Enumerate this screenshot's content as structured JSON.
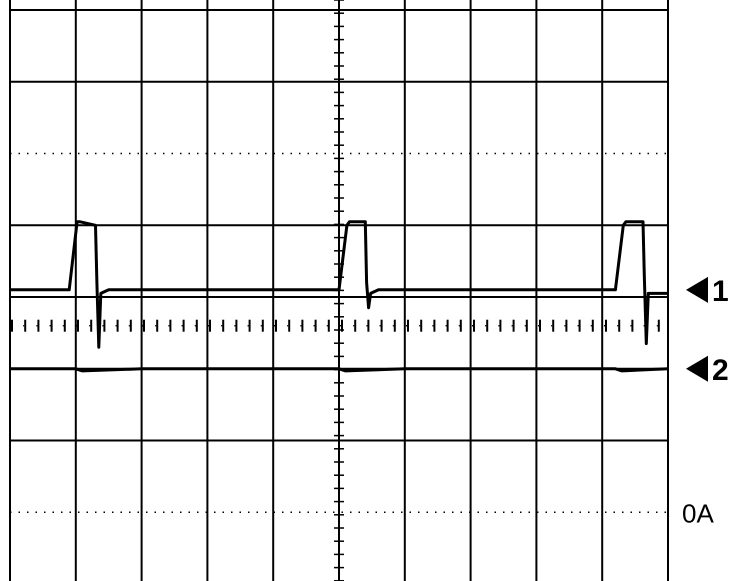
{
  "chart_data": {
    "type": "line",
    "title": "",
    "xlabel": "",
    "ylabel": "",
    "grid": true,
    "grid_divisions": {
      "x": 10,
      "y": 8
    },
    "xlim": [
      0,
      10
    ],
    "ylim": [
      0,
      8
    ],
    "x_unit": "div",
    "y_unit": "div",
    "series": [
      {
        "marker": "1",
        "color": "#000000",
        "points": [
          [
            0,
            4.1
          ],
          [
            0.9,
            4.1
          ],
          [
            1.02,
            5.05
          ],
          [
            1.06,
            5.05
          ],
          [
            1.3,
            5.0
          ],
          [
            1.32,
            4.2
          ],
          [
            1.35,
            3.3
          ],
          [
            1.38,
            4.05
          ],
          [
            1.5,
            4.1
          ],
          [
            5.0,
            4.1
          ],
          [
            5.12,
            5.0
          ],
          [
            5.16,
            5.05
          ],
          [
            5.4,
            5.05
          ],
          [
            5.42,
            4.2
          ],
          [
            5.45,
            3.85
          ],
          [
            5.48,
            4.05
          ],
          [
            5.6,
            4.1
          ],
          [
            9.2,
            4.1
          ],
          [
            9.32,
            5.0
          ],
          [
            9.36,
            5.05
          ],
          [
            9.62,
            5.05
          ],
          [
            9.64,
            4.3
          ],
          [
            9.67,
            3.35
          ],
          [
            9.7,
            4.05
          ],
          [
            10,
            4.05
          ]
        ]
      },
      {
        "marker": "2",
        "color": "#000000",
        "points": [
          [
            0,
            3.0
          ],
          [
            1,
            3.0
          ],
          [
            1.1,
            2.97
          ],
          [
            2,
            3.0
          ],
          [
            3,
            3.0
          ],
          [
            5.0,
            3.0
          ],
          [
            5.1,
            2.97
          ],
          [
            6,
            3.0
          ],
          [
            9.2,
            3.0
          ],
          [
            9.3,
            2.97
          ],
          [
            10,
            3.0
          ]
        ]
      }
    ],
    "level_markers": [
      {
        "label": "1",
        "y": 4.1
      },
      {
        "label": "2",
        "y": 3.0
      },
      {
        "label": "0A",
        "y": 1.0
      }
    ]
  }
}
